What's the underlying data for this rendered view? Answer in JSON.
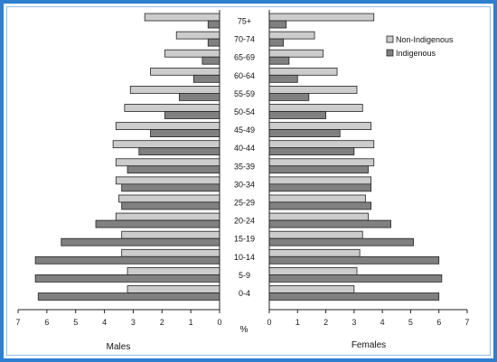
{
  "chart_data": {
    "type": "bar",
    "subtype": "population-pyramid",
    "categories": [
      "75+",
      "70-74",
      "65-69",
      "60-64",
      "55-59",
      "50-54",
      "45-49",
      "40-44",
      "35-39",
      "30-34",
      "25-29",
      "20-24",
      "15-19",
      "10-14",
      "5-9",
      "0-4"
    ],
    "unit_label": "%",
    "x_ticks": [
      0,
      1,
      2,
      3,
      4,
      5,
      6,
      7
    ],
    "xlim": [
      0,
      7
    ],
    "legend_position": "top-right",
    "legend": [
      "Non-Indigenous",
      "Indigenous"
    ],
    "colors": {
      "Non-Indigenous": "#cccccc",
      "Indigenous": "#808080",
      "outline": "#222222"
    },
    "males": {
      "label": "Males",
      "series": [
        {
          "name": "Non-Indigenous",
          "values": [
            2.6,
            1.5,
            1.9,
            2.4,
            3.1,
            3.3,
            3.6,
            3.7,
            3.6,
            3.6,
            3.5,
            3.6,
            3.4,
            3.4,
            3.2,
            3.2
          ]
        },
        {
          "name": "Indigenous",
          "values": [
            0.4,
            0.4,
            0.6,
            0.9,
            1.4,
            1.9,
            2.4,
            2.8,
            3.2,
            3.4,
            3.4,
            4.3,
            5.5,
            6.4,
            6.4,
            6.3
          ]
        }
      ]
    },
    "females": {
      "label": "Females",
      "series": [
        {
          "name": "Non-Indigenous",
          "values": [
            3.7,
            1.6,
            1.9,
            2.4,
            3.1,
            3.3,
            3.6,
            3.7,
            3.7,
            3.6,
            3.4,
            3.5,
            3.3,
            3.2,
            3.1,
            3.0
          ]
        },
        {
          "name": "Indigenous",
          "values": [
            0.6,
            0.5,
            0.7,
            1.0,
            1.4,
            2.0,
            2.5,
            3.0,
            3.5,
            3.6,
            3.6,
            4.3,
            5.1,
            6.0,
            6.1,
            6.0
          ]
        }
      ]
    }
  }
}
